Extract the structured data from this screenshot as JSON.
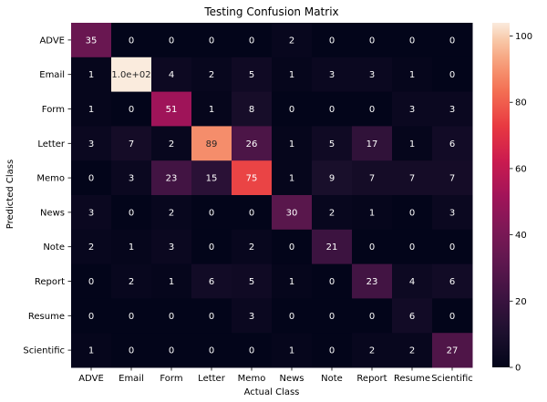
{
  "chart_data": {
    "type": "heatmap",
    "title": "Testing Confusion Matrix",
    "xlabel": "Actual Class",
    "ylabel": "Predicted Class",
    "x_categories": [
      "ADVE",
      "Email",
      "Form",
      "Letter",
      "Memo",
      "News",
      "Note",
      "Report",
      "Resume",
      "Scientific"
    ],
    "y_categories": [
      "ADVE",
      "Email",
      "Form",
      "Letter",
      "Memo",
      "News",
      "Note",
      "Report",
      "Resume",
      "Scientific"
    ],
    "values": [
      [
        35,
        0,
        0,
        0,
        0,
        2,
        0,
        0,
        0,
        0
      ],
      [
        1,
        104,
        4,
        2,
        5,
        1,
        3,
        3,
        1,
        0
      ],
      [
        1,
        0,
        51,
        1,
        8,
        0,
        0,
        0,
        3,
        3
      ],
      [
        3,
        7,
        2,
        89,
        26,
        1,
        5,
        17,
        1,
        6
      ],
      [
        0,
        3,
        23,
        15,
        75,
        1,
        9,
        7,
        7,
        7
      ],
      [
        3,
        0,
        2,
        0,
        0,
        30,
        2,
        1,
        0,
        3
      ],
      [
        2,
        1,
        3,
        0,
        2,
        0,
        21,
        0,
        0,
        0
      ],
      [
        0,
        2,
        1,
        6,
        5,
        1,
        0,
        23,
        4,
        6
      ],
      [
        0,
        0,
        0,
        0,
        3,
        0,
        0,
        0,
        6,
        0
      ],
      [
        1,
        0,
        0,
        0,
        0,
        1,
        0,
        2,
        2,
        27
      ]
    ],
    "cell_labels": [
      [
        "35",
        "0",
        "0",
        "0",
        "0",
        "2",
        "0",
        "0",
        "0",
        "0"
      ],
      [
        "1",
        "1.0e+02",
        "4",
        "2",
        "5",
        "1",
        "3",
        "3",
        "1",
        "0"
      ],
      [
        "1",
        "0",
        "51",
        "1",
        "8",
        "0",
        "0",
        "0",
        "3",
        "3"
      ],
      [
        "3",
        "7",
        "2",
        "89",
        "26",
        "1",
        "5",
        "17",
        "1",
        "6"
      ],
      [
        "0",
        "3",
        "23",
        "15",
        "75",
        "1",
        "9",
        "7",
        "7",
        "7"
      ],
      [
        "3",
        "0",
        "2",
        "0",
        "0",
        "30",
        "2",
        "1",
        "0",
        "3"
      ],
      [
        "2",
        "1",
        "3",
        "0",
        "2",
        "0",
        "21",
        "0",
        "0",
        "0"
      ],
      [
        "0",
        "2",
        "1",
        "6",
        "5",
        "1",
        "0",
        "23",
        "4",
        "6"
      ],
      [
        "0",
        "0",
        "0",
        "0",
        "3",
        "0",
        "0",
        "0",
        "6",
        "0"
      ],
      [
        "1",
        "0",
        "0",
        "0",
        "0",
        "1",
        "0",
        "2",
        "2",
        "27"
      ]
    ],
    "colorbar": {
      "range": [
        0,
        104
      ],
      "ticks": [
        0,
        20,
        40,
        60,
        80,
        100
      ],
      "colormap": "rocket"
    },
    "grid": false
  }
}
